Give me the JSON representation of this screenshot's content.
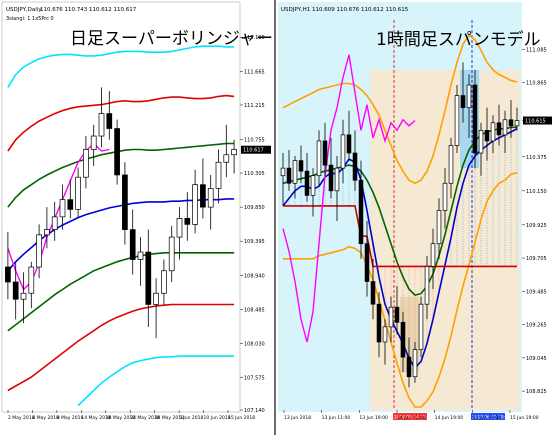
{
  "chart_data": [
    {
      "type": "line",
      "symbol_label": "USDJPY,Daily",
      "header_values": "110.676 110.743 110.612 110.617",
      "indicator_label": "3slangi: 1 1x5Prc 0",
      "title": "日足スーパーボリンジャー",
      "ylim": [
        107.14,
        112.35
      ],
      "y_ticks": [
        "112.120",
        "111.665",
        "111.215",
        "110.755",
        "110.305",
        "109.850",
        "109.395",
        "108.940",
        "108.485",
        "108.030",
        "107.575",
        "107.140"
      ],
      "x_ticks": [
        "2 May 2018",
        "4 May 2018",
        "8 May 2018",
        "14 May 2018",
        "18 May 2018",
        "24 May 2018",
        "30 May 2018",
        "5 Jun 2018",
        "10 Jun 2018",
        "15 Jun 2018"
      ],
      "current_price": "110.617",
      "colors": {
        "plus3": "#00e5ff",
        "plus2": "#e00000",
        "plus1": "#006400",
        "mid": "#0000e0",
        "minus1": "#006400",
        "minus2": "#e00000",
        "minus3": "#00e5ff",
        "lag": "#ff00ff",
        "bull": "#ffffff",
        "bear": "#000000"
      },
      "candles": [
        [
          109.05,
          109.52,
          108.62,
          108.85
        ],
        [
          108.85,
          109.1,
          108.35,
          108.62
        ],
        [
          108.62,
          108.98,
          108.3,
          108.7
        ],
        [
          108.7,
          109.12,
          108.5,
          109.05
        ],
        [
          109.05,
          109.62,
          108.9,
          109.48
        ],
        [
          109.48,
          109.85,
          109.3,
          109.55
        ],
        [
          109.55,
          109.92,
          109.4,
          109.72
        ],
        [
          109.72,
          110.15,
          109.55,
          109.95
        ],
        [
          109.95,
          110.22,
          109.7,
          109.82
        ],
        [
          109.82,
          110.38,
          109.7,
          110.25
        ],
        [
          110.25,
          110.8,
          110.1,
          110.62
        ],
        [
          110.62,
          110.95,
          110.4,
          110.8
        ],
        [
          110.8,
          111.45,
          110.65,
          111.1
        ],
        [
          111.1,
          111.4,
          110.75,
          110.9
        ],
        [
          110.9,
          111.02,
          110.15,
          110.28
        ],
        [
          110.28,
          110.45,
          109.35,
          109.55
        ],
        [
          109.55,
          109.82,
          108.95,
          109.15
        ],
        [
          109.15,
          109.45,
          108.8,
          109.25
        ],
        [
          109.25,
          109.55,
          108.25,
          108.55
        ],
        [
          108.55,
          108.9,
          108.1,
          108.7
        ],
        [
          108.7,
          109.15,
          108.55,
          109.0
        ],
        [
          109.0,
          109.6,
          108.85,
          109.45
        ],
        [
          109.45,
          109.85,
          109.15,
          109.7
        ],
        [
          109.7,
          110.05,
          109.4,
          109.62
        ],
        [
          109.62,
          110.35,
          109.5,
          110.15
        ],
        [
          110.15,
          110.5,
          109.7,
          109.85
        ],
        [
          109.85,
          110.28,
          109.55,
          110.1
        ],
        [
          110.1,
          110.62,
          109.9,
          110.45
        ],
        [
          110.45,
          110.95,
          110.25,
          110.55
        ],
        [
          110.55,
          110.75,
          110.3,
          110.62
        ]
      ],
      "series": [
        {
          "name": "",
          "role": "plus3",
          "values": [
            111.45,
            111.62,
            111.72,
            111.78,
            111.83,
            111.86,
            111.88,
            111.89,
            111.89,
            111.88,
            111.87,
            111.87,
            111.88,
            111.9,
            111.92,
            111.93,
            111.93,
            111.93,
            111.92,
            111.92,
            111.92,
            111.93,
            111.95,
            111.97,
            111.99,
            112.0,
            112.0,
            112.0,
            111.99,
            111.99
          ]
        },
        {
          "name": "",
          "role": "plus2",
          "values": [
            110.6,
            110.75,
            110.85,
            110.93,
            111.0,
            111.05,
            111.1,
            111.14,
            111.17,
            111.19,
            111.2,
            111.21,
            111.22,
            111.24,
            111.26,
            111.27,
            111.26,
            111.26,
            111.27,
            111.29,
            111.31,
            111.32,
            111.32,
            111.31,
            111.3,
            111.3,
            111.31,
            111.33,
            111.34,
            111.33
          ]
        },
        {
          "name": "",
          "role": "plus1",
          "values": [
            109.85,
            109.98,
            110.08,
            110.15,
            110.22,
            110.28,
            110.33,
            110.38,
            110.42,
            110.46,
            110.49,
            110.52,
            110.55,
            110.57,
            110.59,
            110.61,
            110.62,
            110.62,
            110.61,
            110.61,
            110.62,
            110.63,
            110.64,
            110.65,
            110.66,
            110.67,
            110.68,
            110.69,
            110.7,
            110.7
          ]
        },
        {
          "name": "",
          "role": "mid",
          "values": [
            109.0,
            109.12,
            109.22,
            109.31,
            109.4,
            109.48,
            109.55,
            109.61,
            109.66,
            109.71,
            109.75,
            109.78,
            109.81,
            109.84,
            109.86,
            109.88,
            109.9,
            109.91,
            109.92,
            109.92,
            109.92,
            109.93,
            109.93,
            109.94,
            109.94,
            109.95,
            109.95,
            109.95,
            109.96,
            109.96
          ]
        },
        {
          "name": "",
          "role": "minus1",
          "values": [
            108.2,
            108.28,
            108.36,
            108.44,
            108.52,
            108.6,
            108.68,
            108.75,
            108.82,
            108.88,
            108.94,
            109.0,
            109.04,
            109.08,
            109.12,
            109.15,
            109.18,
            109.2,
            109.22,
            109.23,
            109.24,
            109.24,
            109.24,
            109.24,
            109.24,
            109.24,
            109.24,
            109.24,
            109.24,
            109.24
          ]
        },
        {
          "name": "",
          "role": "minus2",
          "values": [
            107.4,
            107.46,
            107.52,
            107.58,
            107.66,
            107.74,
            107.82,
            107.9,
            107.98,
            108.06,
            108.13,
            108.2,
            108.27,
            108.33,
            108.38,
            108.42,
            108.46,
            108.49,
            108.51,
            108.53,
            108.54,
            108.55,
            108.55,
            108.55,
            108.55,
            108.55,
            108.55,
            108.55,
            108.55,
            108.55
          ]
        },
        {
          "name": "",
          "role": "minus3",
          "values": [
            null,
            null,
            null,
            null,
            null,
            null,
            null,
            null,
            null,
            107.2,
            107.3,
            107.4,
            107.5,
            107.58,
            107.65,
            107.72,
            107.77,
            107.8,
            107.82,
            107.84,
            107.85,
            107.85,
            107.86,
            107.86,
            107.86,
            107.86,
            107.86,
            107.86,
            107.86,
            107.86
          ]
        },
        {
          "name": "",
          "role": "lag",
          "values": [
            109.3,
            109.0,
            108.75,
            108.85,
            109.1,
            109.45,
            109.7,
            109.95,
            110.2,
            110.45,
            110.6,
            110.7,
            110.6,
            110.62,
            null,
            null,
            null,
            null,
            null,
            null,
            null,
            null,
            null,
            null,
            null,
            null,
            null,
            null,
            null,
            null
          ]
        }
      ]
    },
    {
      "type": "line",
      "symbol_label": "USDJPY,H1",
      "header_values": "110.609 110.676 110.612 110.615",
      "title": "1時間足スパンモデル",
      "ylim": [
        108.7,
        111.28
      ],
      "y_ticks": [
        "111.085",
        "110.865",
        "110.615",
        "110.375",
        "110.150",
        "109.925",
        "109.705",
        "109.485",
        "109.265",
        "109.045",
        "108.825"
      ],
      "x_ticks": [
        "13 Jun 2018",
        "13 Jun 11:00",
        "13 Jun 19:00",
        "14 Jun 11:00",
        "14 Jun 19:00",
        "15 Jun 11:00",
        "15 Jun 19:00"
      ],
      "current_price": "110.615",
      "highlight_labels": [
        "2018.06.14 09:00",
        "2018.06.15 00:00"
      ],
      "colors": {
        "bg": "#d8f4fb",
        "zone": "#fae6cc",
        "box_tan": "#e8d5b0",
        "box_blue": "#a8d8ee",
        "upper": "#ffa000",
        "lower": "#ffa000",
        "mid": "#006400",
        "blue": "#0000cc",
        "base": "#cc0000",
        "lag": "#ff00ff",
        "span_blue": "#1e90ff"
      },
      "candles": [
        [
          110.25,
          110.4,
          110.05,
          110.3
        ],
        [
          110.3,
          110.42,
          110.15,
          110.2
        ],
        [
          110.2,
          110.38,
          110.1,
          110.35
        ],
        [
          110.35,
          110.45,
          110.2,
          110.28
        ],
        [
          110.28,
          110.4,
          110.08,
          110.12
        ],
        [
          110.12,
          110.3,
          109.98,
          110.25
        ],
        [
          110.25,
          110.55,
          110.18,
          110.48
        ],
        [
          110.48,
          110.6,
          110.25,
          110.32
        ],
        [
          110.32,
          110.5,
          110.1,
          110.15
        ],
        [
          110.15,
          110.38,
          109.95,
          110.3
        ],
        [
          110.3,
          110.62,
          110.2,
          110.52
        ],
        [
          110.52,
          110.68,
          110.35,
          110.4
        ],
        [
          110.4,
          110.55,
          110.15,
          110.22
        ],
        [
          110.22,
          110.35,
          109.7,
          109.8
        ],
        [
          109.8,
          109.95,
          109.45,
          109.55
        ],
        [
          109.55,
          109.7,
          109.3,
          109.4
        ],
        [
          109.4,
          109.48,
          109.05,
          109.15
        ],
        [
          109.15,
          109.3,
          109.0,
          109.25
        ],
        [
          109.25,
          109.45,
          109.15,
          109.38
        ],
        [
          109.38,
          109.52,
          109.2,
          109.28
        ],
        [
          109.28,
          109.35,
          108.95,
          109.05
        ],
        [
          109.05,
          109.18,
          108.85,
          108.92
        ],
        [
          108.92,
          109.15,
          108.88,
          109.1
        ],
        [
          109.1,
          109.45,
          109.05,
          109.4
        ],
        [
          109.4,
          109.72,
          109.3,
          109.65
        ],
        [
          109.65,
          109.9,
          109.5,
          109.8
        ],
        [
          109.8,
          110.1,
          109.7,
          110.02
        ],
        [
          110.02,
          110.3,
          109.9,
          110.2
        ],
        [
          110.2,
          110.5,
          110.1,
          110.45
        ],
        [
          110.45,
          110.85,
          110.4,
          110.78
        ],
        [
          110.78,
          111.0,
          110.6,
          110.7
        ],
        [
          110.7,
          110.92,
          110.5,
          110.85
        ],
        [
          110.85,
          110.95,
          110.3,
          110.4
        ],
        [
          110.4,
          110.6,
          110.25,
          110.55
        ],
        [
          110.55,
          110.7,
          110.35,
          110.48
        ],
        [
          110.48,
          110.65,
          110.4,
          110.6
        ],
        [
          110.6,
          110.72,
          110.45,
          110.52
        ],
        [
          110.52,
          110.68,
          110.4,
          110.62
        ],
        [
          110.62,
          110.75,
          110.5,
          110.58
        ],
        [
          110.58,
          110.7,
          110.55,
          110.615
        ]
      ],
      "series": [
        {
          "name": "",
          "role": "upper",
          "values": [
            110.7,
            110.72,
            110.74,
            110.76,
            110.78,
            110.8,
            110.82,
            110.83,
            110.84,
            110.85,
            110.86,
            110.86,
            110.85,
            110.82,
            110.78,
            110.72,
            110.65,
            110.55,
            110.45,
            110.35,
            110.28,
            110.22,
            110.2,
            110.22,
            110.28,
            110.38,
            110.52,
            110.68,
            110.85,
            111.0,
            111.12,
            111.18,
            111.15,
            111.08,
            111.0,
            110.95,
            110.92,
            110.9,
            110.88,
            110.87
          ]
        },
        {
          "name": "",
          "role": "mid",
          "values": [
            110.2,
            110.21,
            110.22,
            110.23,
            110.24,
            110.25,
            110.27,
            110.28,
            110.29,
            110.3,
            110.31,
            110.32,
            110.31,
            110.28,
            110.22,
            110.14,
            110.04,
            109.92,
            109.8,
            109.68,
            109.58,
            109.5,
            109.46,
            109.47,
            109.52,
            109.6,
            109.72,
            109.86,
            110.02,
            110.18,
            110.32,
            110.42,
            110.48,
            110.52,
            110.54,
            110.55,
            110.56,
            110.56,
            110.57,
            110.57
          ]
        },
        {
          "name": "",
          "role": "lower",
          "values": [
            109.7,
            109.7,
            109.7,
            109.7,
            109.7,
            109.7,
            109.72,
            109.73,
            109.74,
            109.75,
            109.76,
            109.78,
            109.77,
            109.74,
            109.66,
            109.56,
            109.43,
            109.29,
            109.15,
            109.01,
            108.88,
            108.78,
            108.72,
            108.72,
            108.76,
            108.82,
            108.92,
            109.04,
            109.19,
            109.36,
            109.52,
            109.66,
            109.81,
            109.96,
            110.08,
            110.15,
            110.2,
            110.22,
            110.26,
            110.27
          ]
        },
        {
          "name": "",
          "role": "blue",
          "values": [
            110.05,
            110.1,
            110.15,
            110.18,
            110.18,
            110.16,
            110.18,
            110.24,
            110.27,
            110.26,
            110.3,
            110.36,
            110.34,
            110.22,
            110.02,
            109.8,
            109.58,
            109.4,
            109.3,
            109.22,
            109.14,
            109.04,
            108.98,
            109.02,
            109.14,
            109.3,
            109.48,
            109.66,
            109.84,
            110.04,
            110.2,
            110.32,
            110.38,
            110.42,
            110.45,
            110.48,
            110.5,
            110.52,
            110.54,
            110.56
          ]
        },
        {
          "name": "",
          "role": "base",
          "values": [
            110.05,
            110.05,
            110.05,
            110.05,
            110.05,
            110.05,
            110.05,
            110.05,
            110.05,
            110.05,
            110.05,
            110.05,
            110.05,
            109.85,
            109.85,
            109.65,
            109.65,
            109.65,
            109.65,
            109.65,
            109.65,
            109.65,
            109.65,
            109.65,
            109.65,
            109.65,
            109.65,
            109.65,
            109.65,
            109.65,
            109.65,
            109.65,
            109.65,
            109.65,
            109.65,
            109.65,
            109.65,
            109.65,
            109.65,
            109.65
          ]
        },
        {
          "name": "",
          "role": "lag",
          "values": [
            109.9,
            109.75,
            109.55,
            109.3,
            109.15,
            109.35,
            109.8,
            110.25,
            110.55,
            110.7,
            110.9,
            111.05,
            110.8,
            110.55,
            110.72,
            110.5,
            110.62,
            110.48,
            110.6,
            110.55,
            110.62,
            110.58,
            110.615,
            null,
            null,
            null,
            null,
            null,
            null,
            null,
            null,
            null,
            null,
            null,
            null,
            null,
            null,
            null,
            null,
            null
          ]
        }
      ]
    }
  ]
}
